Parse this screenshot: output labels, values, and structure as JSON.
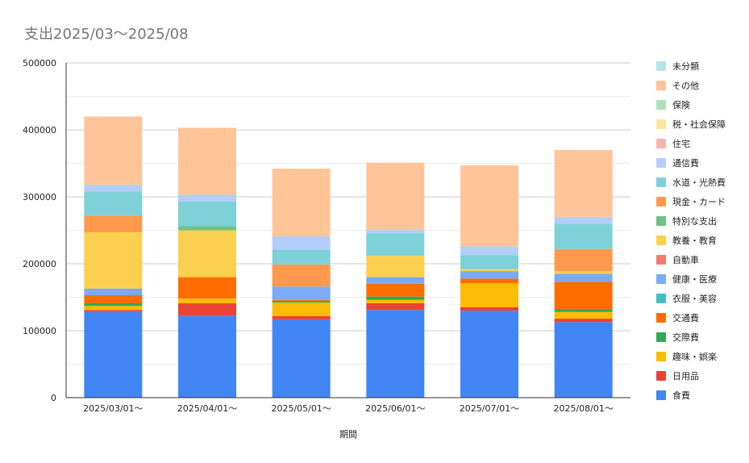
{
  "chart_data": {
    "type": "bar",
    "stacked": true,
    "title": "支出2025/03～2025/08",
    "xlabel": "期間",
    "ylabel": "",
    "ylim": [
      0,
      500000
    ],
    "y_ticks": [
      "0",
      "100000",
      "200000",
      "300000",
      "400000",
      "500000"
    ],
    "grid": true,
    "legend_position": "right",
    "categories": [
      "2025/03/01～",
      "2025/04/01～",
      "2025/05/01～",
      "2025/06/01～",
      "2025/07/01～",
      "2025/08/01～"
    ],
    "series": [
      {
        "name": "食費",
        "color": "#4285f4",
        "values": [
          128000,
          122000,
          117000,
          131000,
          130000,
          113000
        ]
      },
      {
        "name": "日用品",
        "color": "#ea4335",
        "values": [
          3000,
          19000,
          5000,
          10000,
          5000,
          5000
        ]
      },
      {
        "name": "趣味・娯楽",
        "color": "#fbbc04",
        "values": [
          6000,
          7000,
          20000,
          5000,
          36000,
          10000
        ]
      },
      {
        "name": "交際費",
        "color": "#34a853",
        "values": [
          4000,
          0,
          2000,
          5000,
          0,
          4000
        ]
      },
      {
        "name": "交通費",
        "color": "#ff6d01",
        "values": [
          12000,
          32000,
          2000,
          19000,
          7000,
          41000
        ]
      },
      {
        "name": "衣服・美容",
        "color": "#46bdc6",
        "values": [
          0,
          0,
          0,
          0,
          0,
          0
        ]
      },
      {
        "name": "健康・医療",
        "color": "#7baaf7",
        "values": [
          10000,
          0,
          20000,
          10000,
          11000,
          12000
        ]
      },
      {
        "name": "自動車",
        "color": "#f07b72",
        "values": [
          0,
          0,
          0,
          0,
          0,
          0
        ]
      },
      {
        "name": "教養・教育",
        "color": "#fcd04f",
        "values": [
          84000,
          70000,
          0,
          32000,
          3000,
          4000
        ]
      },
      {
        "name": "特別な支出",
        "color": "#71c287",
        "values": [
          0,
          6000,
          0,
          0,
          0,
          0
        ]
      },
      {
        "name": "現金・カード",
        "color": "#ff994d",
        "values": [
          25000,
          0,
          33000,
          0,
          0,
          33000
        ]
      },
      {
        "name": "水道・光熱費",
        "color": "#7ed1d7",
        "values": [
          36000,
          37000,
          22000,
          34000,
          21000,
          38000
        ]
      },
      {
        "name": "通信費",
        "color": "#b3cefb",
        "values": [
          10000,
          10000,
          20000,
          5000,
          13000,
          10000
        ]
      },
      {
        "name": "住宅",
        "color": "#f7b4ae",
        "values": [
          0,
          0,
          0,
          0,
          0,
          0
        ]
      },
      {
        "name": "税・社会保障",
        "color": "#fde49b",
        "values": [
          0,
          0,
          0,
          0,
          0,
          0
        ]
      },
      {
        "name": "保険",
        "color": "#ade0bb",
        "values": [
          0,
          0,
          0,
          0,
          0,
          0
        ]
      },
      {
        "name": "その他",
        "color": "#ffc599",
        "values": [
          102000,
          100000,
          101000,
          100000,
          121000,
          100000
        ]
      },
      {
        "name": "未分類",
        "color": "#b5e5e9",
        "values": [
          0,
          0,
          0,
          0,
          0,
          0
        ]
      }
    ]
  }
}
